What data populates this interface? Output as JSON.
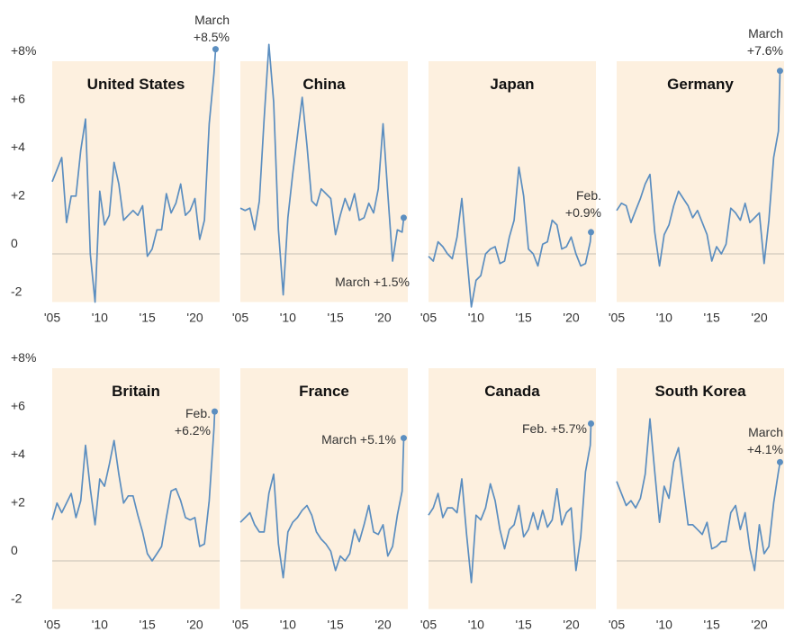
{
  "chart_data": [
    {
      "type": "line",
      "title": "United States",
      "color": "#5b8ec0",
      "x": [
        2005,
        2005.5,
        2006,
        2006.5,
        2007,
        2007.5,
        2008,
        2008.5,
        2009,
        2009.5,
        2010,
        2010.5,
        2011,
        2011.5,
        2012,
        2012.5,
        2013,
        2013.5,
        2014,
        2014.5,
        2015,
        2015.5,
        2016,
        2016.5,
        2017,
        2017.5,
        2018,
        2018.5,
        2019,
        2019.5,
        2020,
        2020.5,
        2021,
        2021.5,
        2022,
        2022.17
      ],
      "values": [
        3.0,
        3.5,
        4.0,
        1.3,
        2.4,
        2.4,
        4.3,
        5.6,
        0.0,
        -2.0,
        2.6,
        1.2,
        1.6,
        3.8,
        2.9,
        1.4,
        1.6,
        1.8,
        1.6,
        2.0,
        -0.1,
        0.2,
        1.0,
        1.0,
        2.5,
        1.7,
        2.1,
        2.9,
        1.6,
        1.8,
        2.3,
        0.6,
        1.4,
        5.4,
        7.5,
        8.5
      ],
      "xlim": [
        2005,
        2022.6
      ],
      "ylim": [
        -2,
        8
      ],
      "xticks": [
        {
          "value": 2005,
          "label": "'05"
        },
        {
          "value": 2010,
          "label": "'10"
        },
        {
          "value": 2015,
          "label": "'15"
        },
        {
          "value": 2020,
          "label": "'20"
        }
      ],
      "yticks": [
        {
          "value": 8,
          "label": "+8%"
        },
        {
          "value": 6,
          "label": "+6"
        },
        {
          "value": 4,
          "label": "+4"
        },
        {
          "value": 2,
          "label": "+2"
        },
        0,
        -2
      ],
      "annotation": [
        "March",
        "+8.5%"
      ]
    },
    {
      "type": "line",
      "title": "China",
      "color": "#5b8ec0",
      "x": [
        2005,
        2005.5,
        2006,
        2006.5,
        2007,
        2007.5,
        2008,
        2008.5,
        2009,
        2009.5,
        2010,
        2010.5,
        2011,
        2011.5,
        2012,
        2012.5,
        2013,
        2013.5,
        2014,
        2014.5,
        2015,
        2015.5,
        2016,
        2016.5,
        2017,
        2017.5,
        2018,
        2018.5,
        2019,
        2019.5,
        2020,
        2020.5,
        2021,
        2021.5,
        2022,
        2022.17
      ],
      "values": [
        1.9,
        1.8,
        1.9,
        1.0,
        2.2,
        5.6,
        8.7,
        6.3,
        1.0,
        -1.7,
        1.5,
        3.3,
        4.9,
        6.5,
        4.5,
        2.2,
        2.0,
        2.7,
        2.5,
        2.3,
        0.8,
        1.6,
        2.3,
        1.8,
        2.5,
        1.4,
        1.5,
        2.1,
        1.7,
        2.7,
        5.4,
        2.5,
        -0.3,
        1.0,
        0.9,
        1.5
      ],
      "xlim": [
        2005,
        2022.6
      ],
      "ylim": [
        -2,
        8
      ],
      "xticks": [
        {
          "value": 2005,
          "label": "'05"
        },
        {
          "value": 2010,
          "label": "'10"
        },
        {
          "value": 2015,
          "label": "'15"
        },
        {
          "value": 2020,
          "label": "'20"
        }
      ],
      "annotation": [
        "March +1.5%"
      ]
    },
    {
      "type": "line",
      "title": "Japan",
      "color": "#5b8ec0",
      "x": [
        2005,
        2005.5,
        2006,
        2006.5,
        2007,
        2007.5,
        2008,
        2008.5,
        2009,
        2009.5,
        2010,
        2010.5,
        2011,
        2011.5,
        2012,
        2012.5,
        2013,
        2013.5,
        2014,
        2014.5,
        2015,
        2015.5,
        2016,
        2016.5,
        2017,
        2017.5,
        2018,
        2018.5,
        2019,
        2019.5,
        2020,
        2020.5,
        2021,
        2021.5,
        2022,
        2022.08
      ],
      "values": [
        -0.1,
        -0.3,
        0.5,
        0.3,
        0.0,
        -0.2,
        0.7,
        2.3,
        0.0,
        -2.2,
        -1.1,
        -0.9,
        0.0,
        0.2,
        0.3,
        -0.4,
        -0.3,
        0.7,
        1.4,
        3.6,
        2.4,
        0.2,
        0.0,
        -0.5,
        0.4,
        0.5,
        1.4,
        1.2,
        0.2,
        0.3,
        0.7,
        0.0,
        -0.5,
        -0.4,
        0.5,
        0.9
      ],
      "xlim": [
        2005,
        2022.6
      ],
      "ylim": [
        -2,
        8
      ],
      "xticks": [
        {
          "value": 2005,
          "label": "'05"
        },
        {
          "value": 2010,
          "label": "'10"
        },
        {
          "value": 2015,
          "label": "'15"
        },
        {
          "value": 2020,
          "label": "'20"
        }
      ],
      "annotation": [
        "Feb.",
        "+0.9%"
      ]
    },
    {
      "type": "line",
      "title": "Germany",
      "color": "#5b8ec0",
      "x": [
        2005,
        2005.5,
        2006,
        2006.5,
        2007,
        2007.5,
        2008,
        2008.5,
        2009,
        2009.5,
        2010,
        2010.5,
        2011,
        2011.5,
        2012,
        2012.5,
        2013,
        2013.5,
        2014,
        2014.5,
        2015,
        2015.5,
        2016,
        2016.5,
        2017,
        2017.5,
        2018,
        2018.5,
        2019,
        2019.5,
        2020,
        2020.5,
        2021,
        2021.5,
        2022,
        2022.17
      ],
      "values": [
        1.8,
        2.1,
        2.0,
        1.3,
        1.8,
        2.3,
        2.9,
        3.3,
        0.9,
        -0.5,
        0.8,
        1.2,
        2.0,
        2.6,
        2.3,
        2.0,
        1.5,
        1.8,
        1.3,
        0.8,
        -0.3,
        0.3,
        0.0,
        0.4,
        1.9,
        1.7,
        1.4,
        2.1,
        1.3,
        1.5,
        1.7,
        -0.4,
        1.4,
        4.0,
        5.1,
        7.6
      ],
      "xlim": [
        2005,
        2022.6
      ],
      "ylim": [
        -2,
        8
      ],
      "xticks": [
        {
          "value": 2005,
          "label": "'05"
        },
        {
          "value": 2010,
          "label": "'10"
        },
        {
          "value": 2015,
          "label": "'15"
        },
        {
          "value": 2020,
          "label": "'20"
        }
      ],
      "annotation": [
        "March",
        "+7.6%"
      ]
    },
    {
      "type": "line",
      "title": "Britain",
      "color": "#5b8ec0",
      "x": [
        2005,
        2005.5,
        2006,
        2006.5,
        2007,
        2007.5,
        2008,
        2008.5,
        2009,
        2009.5,
        2010,
        2010.5,
        2011,
        2011.5,
        2012,
        2012.5,
        2013,
        2013.5,
        2014,
        2014.5,
        2015,
        2015.5,
        2016,
        2016.5,
        2017,
        2017.5,
        2018,
        2018.5,
        2019,
        2019.5,
        2020,
        2020.5,
        2021,
        2021.5,
        2022,
        2022.08
      ],
      "values": [
        1.7,
        2.4,
        2.0,
        2.4,
        2.8,
        1.8,
        2.5,
        4.8,
        3.0,
        1.5,
        3.4,
        3.1,
        4.0,
        5.0,
        3.6,
        2.4,
        2.7,
        2.7,
        1.9,
        1.2,
        0.3,
        0.0,
        0.3,
        0.6,
        1.8,
        2.9,
        3.0,
        2.5,
        1.8,
        1.7,
        1.8,
        0.6,
        0.7,
        2.5,
        5.5,
        6.2
      ],
      "xlim": [
        2005,
        2022.6
      ],
      "ylim": [
        -2,
        8
      ],
      "xticks": [
        {
          "value": 2005,
          "label": "'05"
        },
        {
          "value": 2010,
          "label": "'10"
        },
        {
          "value": 2015,
          "label": "'15"
        },
        {
          "value": 2020,
          "label": "'20"
        }
      ],
      "yticks": [
        {
          "value": 8,
          "label": "+8%"
        },
        {
          "value": 6,
          "label": "+6"
        },
        {
          "value": 4,
          "label": "+4"
        },
        {
          "value": 2,
          "label": "+2"
        },
        0,
        -2
      ],
      "annotation": [
        "Feb.",
        "+6.2%"
      ]
    },
    {
      "type": "line",
      "title": "France",
      "color": "#5b8ec0",
      "x": [
        2005,
        2005.5,
        2006,
        2006.5,
        2007,
        2007.5,
        2008,
        2008.5,
        2009,
        2009.5,
        2010,
        2010.5,
        2011,
        2011.5,
        2012,
        2012.5,
        2013,
        2013.5,
        2014,
        2014.5,
        2015,
        2015.5,
        2016,
        2016.5,
        2017,
        2017.5,
        2018,
        2018.5,
        2019,
        2019.5,
        2020,
        2020.5,
        2021,
        2021.5,
        2022,
        2022.17
      ],
      "values": [
        1.6,
        1.8,
        2.0,
        1.5,
        1.2,
        1.2,
        2.8,
        3.6,
        0.7,
        -0.7,
        1.2,
        1.6,
        1.8,
        2.1,
        2.3,
        1.9,
        1.2,
        0.9,
        0.7,
        0.4,
        -0.4,
        0.2,
        0.0,
        0.3,
        1.3,
        0.8,
        1.5,
        2.3,
        1.2,
        1.1,
        1.5,
        0.2,
        0.6,
        1.9,
        2.9,
        5.1
      ],
      "xlim": [
        2005,
        2022.6
      ],
      "ylim": [
        -2,
        8
      ],
      "xticks": [
        {
          "value": 2005,
          "label": "'05"
        },
        {
          "value": 2010,
          "label": "'10"
        },
        {
          "value": 2015,
          "label": "'15"
        },
        {
          "value": 2020,
          "label": "'20"
        }
      ],
      "annotation": [
        "March +5.1%"
      ]
    },
    {
      "type": "line",
      "title": "Canada",
      "color": "#5b8ec0",
      "x": [
        2005,
        2005.5,
        2006,
        2006.5,
        2007,
        2007.5,
        2008,
        2008.5,
        2009,
        2009.5,
        2010,
        2010.5,
        2011,
        2011.5,
        2012,
        2012.5,
        2013,
        2013.5,
        2014,
        2014.5,
        2015,
        2015.5,
        2016,
        2016.5,
        2017,
        2017.5,
        2018,
        2018.5,
        2019,
        2019.5,
        2020,
        2020.5,
        2021,
        2021.5,
        2022,
        2022.08
      ],
      "values": [
        1.9,
        2.2,
        2.8,
        1.8,
        2.2,
        2.2,
        2.0,
        3.4,
        1.1,
        -0.9,
        1.9,
        1.7,
        2.2,
        3.2,
        2.5,
        1.3,
        0.5,
        1.3,
        1.5,
        2.3,
        1.0,
        1.3,
        2.0,
        1.3,
        2.1,
        1.4,
        1.7,
        3.0,
        1.5,
        2.0,
        2.2,
        -0.4,
        1.0,
        3.7,
        4.8,
        5.7
      ],
      "xlim": [
        2005,
        2022.6
      ],
      "ylim": [
        -2,
        8
      ],
      "xticks": [
        {
          "value": 2005,
          "label": "'05"
        },
        {
          "value": 2010,
          "label": "'10"
        },
        {
          "value": 2015,
          "label": "'15"
        },
        {
          "value": 2020,
          "label": "'20"
        }
      ],
      "annotation": [
        "Feb. +5.7%"
      ]
    },
    {
      "type": "line",
      "title": "South Korea",
      "color": "#5b8ec0",
      "x": [
        2005,
        2005.5,
        2006,
        2006.5,
        2007,
        2007.5,
        2008,
        2008.5,
        2009,
        2009.5,
        2010,
        2010.5,
        2011,
        2011.5,
        2012,
        2012.5,
        2013,
        2013.5,
        2014,
        2014.5,
        2015,
        2015.5,
        2016,
        2016.5,
        2017,
        2017.5,
        2018,
        2018.5,
        2019,
        2019.5,
        2020,
        2020.5,
        2021,
        2021.5,
        2022,
        2022.17
      ],
      "values": [
        3.3,
        2.8,
        2.3,
        2.5,
        2.2,
        2.6,
        3.6,
        5.9,
        3.7,
        1.6,
        3.1,
        2.6,
        4.1,
        4.7,
        3.1,
        1.5,
        1.5,
        1.3,
        1.1,
        1.6,
        0.5,
        0.6,
        0.8,
        0.8,
        2.0,
        2.3,
        1.3,
        2.0,
        0.5,
        -0.4,
        1.5,
        0.3,
        0.6,
        2.4,
        3.7,
        4.1
      ],
      "xlim": [
        2005,
        2022.6
      ],
      "ylim": [
        -2,
        8
      ],
      "xticks": [
        {
          "value": 2005,
          "label": "'05"
        },
        {
          "value": 2010,
          "label": "'10"
        },
        {
          "value": 2015,
          "label": "'15"
        },
        {
          "value": 2020,
          "label": "'20"
        }
      ],
      "annotation": [
        "March",
        "+4.1%"
      ]
    }
  ]
}
